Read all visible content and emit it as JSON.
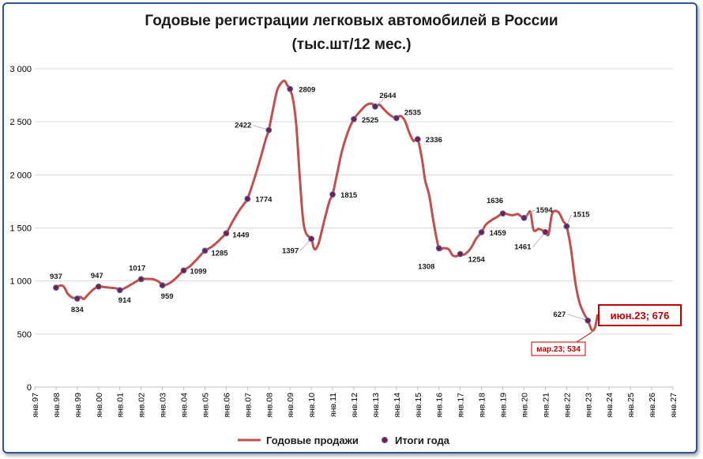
{
  "chart_data": {
    "type": "line",
    "title_line1": "Годовые регистрации легковых автомобилей в России",
    "title_line2": "(тыс.шт/12 мес.)",
    "ylim": [
      0,
      3000
    ],
    "yticks": [
      0,
      500,
      1000,
      1500,
      2000,
      2500,
      3000
    ],
    "ytick_labels": [
      "0",
      "500",
      "1 000",
      "1 500",
      "2 000",
      "2 500",
      "3 000"
    ],
    "x_categories": [
      "янв.97",
      "янв.98",
      "янв.99",
      "янв.00",
      "янв.01",
      "янв.02",
      "янв.03",
      "янв.04",
      "янв.05",
      "янв.06",
      "янв.07",
      "янв.08",
      "янв.09",
      "янв.10",
      "янв.11",
      "янв.12",
      "янв.13",
      "янв.14",
      "янв.15",
      "янв.16",
      "янв.17",
      "янв.18",
      "янв.19",
      "янв.20",
      "янв.21",
      "янв.22",
      "янв.23",
      "янв.24",
      "янв.25",
      "янв.26",
      "янв.27"
    ],
    "legend": {
      "line_label": "Годовые продажи",
      "marker_label": "Итоги года",
      "placement": "bottom"
    },
    "line_color": "#c0504d",
    "marker_color": "#7b1f3a",
    "series_line": {
      "name": "Годовые продажи",
      "points": [
        [
          1998.0,
          937
        ],
        [
          1998.15,
          955
        ],
        [
          1998.35,
          950
        ],
        [
          1998.55,
          880
        ],
        [
          1998.75,
          845
        ],
        [
          1998.9,
          840
        ],
        [
          1999.0,
          834
        ],
        [
          1999.15,
          850
        ],
        [
          1999.3,
          830
        ],
        [
          1999.5,
          870
        ],
        [
          1999.75,
          920
        ],
        [
          2000.0,
          947
        ],
        [
          2000.3,
          942
        ],
        [
          2000.6,
          935
        ],
        [
          2000.85,
          930
        ],
        [
          2001.0,
          914
        ],
        [
          2001.3,
          940
        ],
        [
          2001.6,
          975
        ],
        [
          2001.85,
          1005
        ],
        [
          2002.0,
          1017
        ],
        [
          2002.3,
          1020
        ],
        [
          2002.6,
          1015
        ],
        [
          2002.85,
          990
        ],
        [
          2003.0,
          959
        ],
        [
          2003.3,
          975
        ],
        [
          2003.6,
          1020
        ],
        [
          2003.85,
          1070
        ],
        [
          2004.0,
          1099
        ],
        [
          2004.3,
          1140
        ],
        [
          2004.6,
          1200
        ],
        [
          2004.85,
          1255
        ],
        [
          2005.0,
          1285
        ],
        [
          2005.3,
          1320
        ],
        [
          2005.6,
          1370
        ],
        [
          2005.85,
          1420
        ],
        [
          2006.0,
          1449
        ],
        [
          2006.3,
          1560
        ],
        [
          2006.6,
          1660
        ],
        [
          2006.85,
          1730
        ],
        [
          2007.0,
          1774
        ],
        [
          2007.3,
          1950
        ],
        [
          2007.6,
          2150
        ],
        [
          2007.85,
          2330
        ],
        [
          2008.0,
          2422
        ],
        [
          2008.2,
          2620
        ],
        [
          2008.4,
          2800
        ],
        [
          2008.6,
          2870
        ],
        [
          2008.75,
          2885
        ],
        [
          2008.88,
          2840
        ],
        [
          2009.0,
          2809
        ],
        [
          2009.15,
          2700
        ],
        [
          2009.3,
          2450
        ],
        [
          2009.45,
          2000
        ],
        [
          2009.6,
          1600
        ],
        [
          2009.75,
          1450
        ],
        [
          2010.0,
          1397
        ],
        [
          2010.1,
          1320
        ],
        [
          2010.2,
          1300
        ],
        [
          2010.35,
          1360
        ],
        [
          2010.6,
          1560
        ],
        [
          2010.85,
          1750
        ],
        [
          2011.0,
          1815
        ],
        [
          2011.2,
          2000
        ],
        [
          2011.45,
          2230
        ],
        [
          2011.75,
          2420
        ],
        [
          2012.0,
          2525
        ],
        [
          2012.3,
          2600
        ],
        [
          2012.6,
          2660
        ],
        [
          2012.85,
          2670
        ],
        [
          2013.0,
          2644
        ],
        [
          2013.2,
          2660
        ],
        [
          2013.4,
          2620
        ],
        [
          2013.6,
          2580
        ],
        [
          2013.8,
          2550
        ],
        [
          2014.0,
          2535
        ],
        [
          2014.2,
          2555
        ],
        [
          2014.4,
          2510
        ],
        [
          2014.6,
          2400
        ],
        [
          2014.8,
          2320
        ],
        [
          2015.0,
          2336
        ],
        [
          2015.2,
          2150
        ],
        [
          2015.35,
          1950
        ],
        [
          2015.55,
          1800
        ],
        [
          2015.75,
          1550
        ],
        [
          2016.0,
          1308
        ],
        [
          2016.2,
          1310
        ],
        [
          2016.45,
          1300
        ],
        [
          2016.65,
          1240
        ],
        [
          2016.85,
          1235
        ],
        [
          2017.0,
          1254
        ],
        [
          2017.2,
          1250
        ],
        [
          2017.5,
          1310
        ],
        [
          2017.75,
          1400
        ],
        [
          2018.0,
          1459
        ],
        [
          2018.2,
          1530
        ],
        [
          2018.45,
          1570
        ],
        [
          2018.7,
          1600
        ],
        [
          2019.0,
          1636
        ],
        [
          2019.2,
          1630
        ],
        [
          2019.45,
          1620
        ],
        [
          2019.7,
          1630
        ],
        [
          2019.85,
          1610
        ],
        [
          2020.0,
          1594
        ],
        [
          2020.15,
          1620
        ],
        [
          2020.3,
          1650
        ],
        [
          2020.45,
          1480
        ],
        [
          2020.7,
          1490
        ],
        [
          2021.0,
          1461
        ],
        [
          2021.15,
          1440
        ],
        [
          2021.3,
          1620
        ],
        [
          2021.45,
          1660
        ],
        [
          2021.65,
          1640
        ],
        [
          2021.85,
          1560
        ],
        [
          2022.0,
          1515
        ],
        [
          2022.2,
          1310
        ],
        [
          2022.4,
          1000
        ],
        [
          2022.6,
          800
        ],
        [
          2022.8,
          700
        ],
        [
          2023.0,
          627
        ],
        [
          2023.1,
          575
        ],
        [
          2023.2,
          534
        ],
        [
          2023.33,
          560
        ],
        [
          2023.45,
          676
        ]
      ]
    },
    "series_markers": {
      "name": "Итоги года",
      "points": [
        {
          "x": 1998,
          "y": 937,
          "label": "937"
        },
        {
          "x": 1999,
          "y": 834,
          "label": "834"
        },
        {
          "x": 2000,
          "y": 947,
          "label": "947"
        },
        {
          "x": 2001,
          "y": 914,
          "label": "914"
        },
        {
          "x": 2002,
          "y": 1017,
          "label": "1017"
        },
        {
          "x": 2003,
          "y": 959,
          "label": "959"
        },
        {
          "x": 2004,
          "y": 1099,
          "label": "1099"
        },
        {
          "x": 2005,
          "y": 1285,
          "label": "1285"
        },
        {
          "x": 2006,
          "y": 1449,
          "label": "1449"
        },
        {
          "x": 2007,
          "y": 1774,
          "label": "1774"
        },
        {
          "x": 2008,
          "y": 2422,
          "label": "2422"
        },
        {
          "x": 2009,
          "y": 2809,
          "label": "2809"
        },
        {
          "x": 2010,
          "y": 1397,
          "label": "1397"
        },
        {
          "x": 2011,
          "y": 1815,
          "label": "1815"
        },
        {
          "x": 2012,
          "y": 2525,
          "label": "2525"
        },
        {
          "x": 2013,
          "y": 2644,
          "label": "2644"
        },
        {
          "x": 2014,
          "y": 2535,
          "label": "2535"
        },
        {
          "x": 2015,
          "y": 2336,
          "label": "2336"
        },
        {
          "x": 2016,
          "y": 1308,
          "label": "1308"
        },
        {
          "x": 2017,
          "y": 1254,
          "label": "1254"
        },
        {
          "x": 2018,
          "y": 1459,
          "label": "1459"
        },
        {
          "x": 2019,
          "y": 1636,
          "label": "1636"
        },
        {
          "x": 2020,
          "y": 1594,
          "label": "1594"
        },
        {
          "x": 2021,
          "y": 1461,
          "label": "1461"
        },
        {
          "x": 2022,
          "y": 1515,
          "label": "1515"
        },
        {
          "x": 2023,
          "y": 627,
          "label": "627"
        }
      ]
    },
    "annotations": [
      {
        "id": "jun23",
        "text": "июн.23; 676",
        "x": 2023.45,
        "y": 676
      },
      {
        "id": "mar23",
        "text": "мар.23; 534",
        "x": 2023.2,
        "y": 534
      }
    ]
  }
}
